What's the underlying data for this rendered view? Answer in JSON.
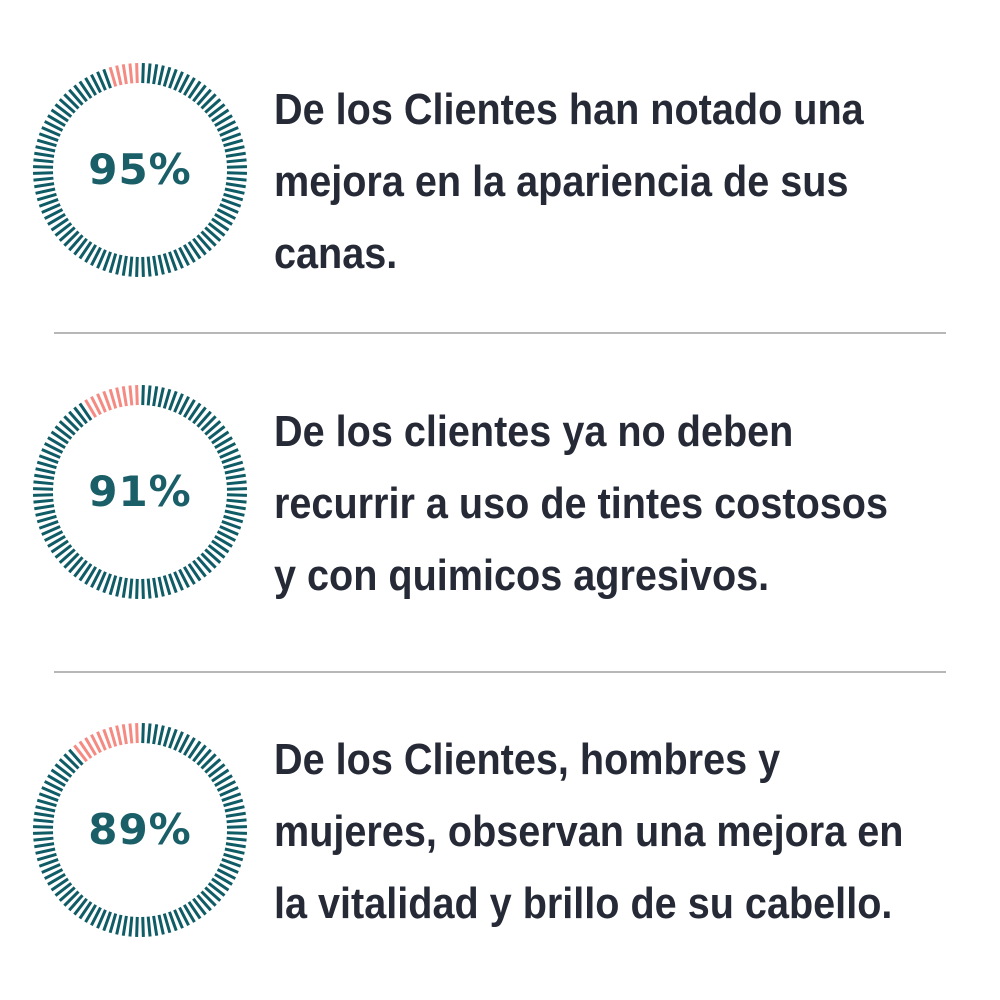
{
  "colors": {
    "ring_filled": "#0f5b66",
    "ring_remaining": "#f58a83",
    "percent_text": "#1a5e68",
    "body_text": "#262a36",
    "divider": "#b7b7b7"
  },
  "stats": [
    {
      "percent_value": 95,
      "percent_label": "95%",
      "text": "De los Clientes han notado una mejora en la apariencia de sus canas."
    },
    {
      "percent_value": 91,
      "percent_label": "91%",
      "text": "De los clientes ya no deben recurrir a uso de tintes costosos y con quimicos agresivos."
    },
    {
      "percent_value": 89,
      "percent_label": "89%",
      "text": "De los Clientes, hombres y mujeres, observan una mejora en la vitalidad y brillo de su cabello."
    }
  ]
}
